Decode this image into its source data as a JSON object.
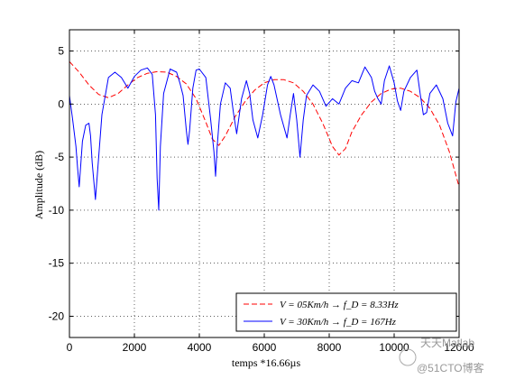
{
  "chart_data": {
    "type": "line",
    "xlabel": "temps *16.66µs",
    "ylabel": "Amplitude (dB)",
    "xlim": [
      0,
      12000
    ],
    "ylim": [
      -22,
      7
    ],
    "xticks": [
      0,
      2000,
      4000,
      6000,
      8000,
      10000,
      12000
    ],
    "xtick_labels": [
      "0",
      "2000",
      "4000",
      "6000",
      "8000",
      "10000",
      "12000"
    ],
    "yticks": [
      5,
      0,
      -5,
      -10,
      -15,
      -20
    ],
    "ytick_labels": [
      "5",
      "0",
      "-5",
      "-10",
      "-15",
      "-20"
    ],
    "grid": true,
    "legend_position": "bottom-right",
    "series": [
      {
        "name": "V = 05Km/h → f_D = 8.33Hz",
        "color": "#ff0000",
        "dash": "dashed",
        "x": [
          0,
          300,
          600,
          900,
          1200,
          1500,
          1800,
          2100,
          2400,
          2700,
          3000,
          3300,
          3600,
          3900,
          4200,
          4400,
          4600,
          4800,
          5100,
          5400,
          5700,
          6000,
          6300,
          6600,
          6900,
          7200,
          7500,
          7800,
          8100,
          8300,
          8500,
          8700,
          9000,
          9300,
          9600,
          9900,
          10200,
          10500,
          10800,
          11100,
          11400,
          11700,
          12000
        ],
        "y": [
          4.0,
          3.0,
          1.8,
          0.9,
          0.6,
          1.0,
          1.8,
          2.5,
          2.9,
          3.05,
          3.0,
          2.6,
          1.9,
          0.5,
          -1.7,
          -3.3,
          -3.9,
          -3.0,
          -1.2,
          0.2,
          1.3,
          2.0,
          2.3,
          2.3,
          2.0,
          1.2,
          0.0,
          -1.8,
          -4.0,
          -4.8,
          -4.2,
          -2.6,
          -1.0,
          0.2,
          1.0,
          1.4,
          1.5,
          1.2,
          0.6,
          -0.4,
          -2.0,
          -4.5,
          -7.8
        ]
      },
      {
        "name": "V = 30Km/h → f_D = 167Hz",
        "color": "#0000ff",
        "dash": "solid",
        "x": [
          0,
          100,
          200,
          250,
          300,
          400,
          500,
          600,
          650,
          700,
          800,
          1000,
          1200,
          1400,
          1600,
          1800,
          2000,
          2200,
          2400,
          2550,
          2650,
          2700,
          2750,
          2800,
          2900,
          3100,
          3300,
          3400,
          3500,
          3600,
          3650,
          3700,
          3750,
          3800,
          3900,
          4000,
          4200,
          4350,
          4450,
          4500,
          4550,
          4650,
          4800,
          4950,
          5050,
          5150,
          5300,
          5450,
          5550,
          5650,
          5800,
          5950,
          6100,
          6200,
          6300,
          6500,
          6700,
          6800,
          6900,
          7000,
          7100,
          7200,
          7300,
          7500,
          7700,
          7900,
          8100,
          8300,
          8500,
          8700,
          8900,
          9100,
          9300,
          9400,
          9500,
          9600,
          9700,
          9850,
          10000,
          10100,
          10200,
          10300,
          10500,
          10700,
          10800,
          10900,
          11000,
          11100,
          11300,
          11500,
          11650,
          11800,
          11900,
          12000
        ],
        "y": [
          0.8,
          -1.5,
          -4.0,
          -6.0,
          -7.8,
          -3.5,
          -2.0,
          -1.8,
          -3.0,
          -5.5,
          -9.0,
          -1.0,
          2.5,
          3.0,
          2.5,
          1.5,
          2.6,
          3.2,
          3.4,
          2.8,
          -1.0,
          -7.0,
          -10.0,
          -4.0,
          1.0,
          3.3,
          3.0,
          2.0,
          0.8,
          -2.5,
          -3.8,
          -2.5,
          -0.5,
          1.5,
          3.2,
          3.3,
          2.5,
          -1.5,
          -4.5,
          -6.8,
          -4.0,
          0.0,
          2.0,
          1.5,
          -0.8,
          -2.8,
          0.5,
          2.2,
          1.0,
          -1.5,
          -3.2,
          -1.0,
          1.8,
          2.6,
          1.8,
          -1.0,
          -3.2,
          -1.0,
          1.0,
          -1.5,
          -5.0,
          -1.5,
          0.8,
          1.8,
          1.2,
          -0.2,
          0.5,
          0.0,
          1.5,
          2.2,
          2.0,
          3.5,
          2.5,
          1.2,
          0.5,
          0.0,
          2.2,
          3.6,
          2.0,
          0.3,
          -0.6,
          1.2,
          2.5,
          3.2,
          1.0,
          -1.0,
          -0.8,
          1.0,
          1.8,
          0.5,
          -1.8,
          -3.0,
          0.2,
          1.5
        ]
      }
    ]
  },
  "watermark": {
    "line1": "天天Matlab",
    "line2": "@51CTO博客"
  }
}
